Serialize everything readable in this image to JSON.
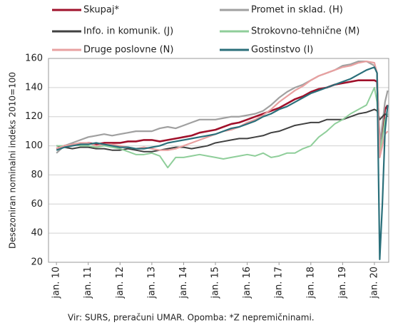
{
  "chart_data": {
    "type": "line",
    "y_axis_label": "Desezoniran nominalni indeks 2010=100",
    "footnote": "Vir: SURS, preračuni UMAR. Opomba: *Z nepremičninami.",
    "x": [
      2010,
      2010.25,
      2010.5,
      2010.75,
      2011,
      2011.25,
      2011.5,
      2011.75,
      2012,
      2012.25,
      2012.5,
      2012.75,
      2013,
      2013.25,
      2013.5,
      2013.75,
      2014,
      2014.25,
      2014.5,
      2014.75,
      2015,
      2015.25,
      2015.5,
      2015.75,
      2016,
      2016.25,
      2016.5,
      2016.75,
      2017,
      2017.25,
      2017.5,
      2017.75,
      2018,
      2018.25,
      2018.5,
      2018.75,
      2019,
      2019.25,
      2019.5,
      2019.75,
      2020,
      2020.083,
      2020.167,
      2020.25,
      2020.333,
      2020.417
    ],
    "series": [
      {
        "name": "Skupaj*",
        "color": "#a0112b",
        "width": 2.6,
        "values": [
          98,
          100,
          101,
          101,
          102,
          101,
          102,
          102,
          102,
          103,
          103,
          104,
          104,
          103,
          104,
          105,
          106,
          107,
          109,
          110,
          111,
          113,
          115,
          116,
          118,
          120,
          122,
          124,
          126,
          129,
          132,
          134,
          137,
          139,
          140,
          142,
          143,
          144,
          145,
          145,
          145,
          144,
          102,
          110,
          125,
          128
        ]
      },
      {
        "name": "Promet in sklad. (H)",
        "color": "#a0a0a0",
        "width": 2.2,
        "values": [
          95,
          100,
          102,
          104,
          106,
          107,
          108,
          107,
          108,
          109,
          110,
          110,
          110,
          112,
          113,
          112,
          114,
          116,
          118,
          118,
          118,
          119,
          120,
          120,
          121,
          122,
          124,
          128,
          133,
          137,
          140,
          142,
          145,
          148,
          150,
          152,
          155,
          156,
          158,
          158,
          155,
          150,
          100,
          115,
          130,
          138
        ]
      },
      {
        "name": "Info. in komunik. (J)",
        "color": "#404040",
        "width": 2.0,
        "values": [
          100,
          99,
          98,
          99,
          99,
          98,
          98,
          97,
          97,
          98,
          97,
          96,
          96,
          97,
          98,
          99,
          99,
          98,
          99,
          100,
          102,
          103,
          104,
          105,
          105,
          106,
          107,
          109,
          110,
          112,
          114,
          115,
          116,
          116,
          118,
          118,
          118,
          120,
          122,
          123,
          125,
          124,
          118,
          120,
          122,
          120
        ]
      },
      {
        "name": "Strokovno-tehnične (M)",
        "color": "#8fce9a",
        "width": 2.0,
        "values": [
          100,
          100,
          101,
          100,
          100,
          99,
          100,
          99,
          98,
          96,
          94,
          94,
          95,
          93,
          85,
          92,
          92,
          93,
          94,
          93,
          92,
          91,
          92,
          93,
          94,
          93,
          95,
          92,
          93,
          95,
          95,
          98,
          100,
          106,
          110,
          115,
          118,
          122,
          125,
          128,
          140,
          130,
          95,
          105,
          118,
          122
        ]
      },
      {
        "name": "Druge poslovne (N)",
        "color": "#e8a0a0",
        "width": 2.2,
        "values": [
          98,
          100,
          101,
          102,
          102,
          100,
          101,
          101,
          100,
          99,
          98,
          99,
          98,
          97,
          97,
          98,
          100,
          102,
          104,
          106,
          108,
          110,
          111,
          113,
          116,
          118,
          121,
          125,
          130,
          134,
          138,
          141,
          145,
          148,
          150,
          152,
          154,
          155,
          157,
          158,
          157,
          150,
          92,
          100,
          108,
          110
        ]
      },
      {
        "name": "Gostinstvo (I)",
        "color": "#2a6f7a",
        "width": 2.2,
        "values": [
          97,
          99,
          100,
          101,
          101,
          102,
          101,
          100,
          99,
          99,
          98,
          98,
          99,
          100,
          102,
          103,
          104,
          105,
          106,
          107,
          108,
          110,
          112,
          113,
          115,
          117,
          120,
          122,
          125,
          127,
          130,
          133,
          136,
          138,
          140,
          142,
          144,
          146,
          149,
          152,
          154,
          150,
          22,
          60,
          110,
          128
        ]
      }
    ],
    "xlim": [
      2009.75,
      2020.45
    ],
    "xticks": [
      {
        "value": 2010,
        "label": "jan. 10"
      },
      {
        "value": 2011,
        "label": "jan. 11"
      },
      {
        "value": 2012,
        "label": "jan. 12"
      },
      {
        "value": 2013,
        "label": "jan. 13"
      },
      {
        "value": 2014,
        "label": "jan. 14"
      },
      {
        "value": 2015,
        "label": "jan. 15"
      },
      {
        "value": 2016,
        "label": "jan. 16"
      },
      {
        "value": 2017,
        "label": "jan. 17"
      },
      {
        "value": 2018,
        "label": "jan. 18"
      },
      {
        "value": 2019,
        "label": "jan. 19"
      },
      {
        "value": 2020,
        "label": "jan. 20"
      }
    ],
    "ylim": [
      20,
      160
    ],
    "yticks": [
      20,
      40,
      60,
      80,
      100,
      120,
      140,
      160
    ],
    "grid": true
  }
}
